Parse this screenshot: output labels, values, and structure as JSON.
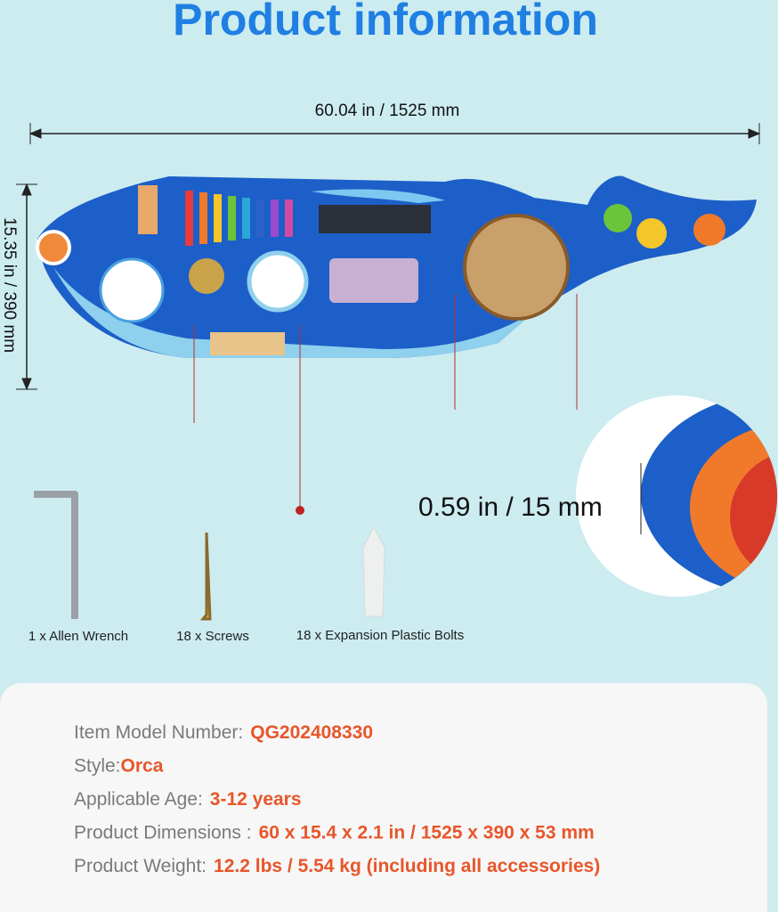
{
  "header": {
    "title": "Product information"
  },
  "dimensions": {
    "width": "60.04 in / 1525 mm",
    "height": "15.35 in / 390 mm",
    "thickness": "0.59 in / 15 mm"
  },
  "accessories": [
    "1 x Allen Wrench",
    "18 x Screws",
    "18 x Expansion Plastic Bolts"
  ],
  "specs": [
    {
      "label": "Item Model Number:",
      "value": "QG202408330"
    },
    {
      "label": "Style:",
      "value": "Orca"
    },
    {
      "label": "Applicable Age:",
      "value": "3-12 years"
    },
    {
      "label": "Product Dimensions :",
      "value": "60 x 15.4 x 2.1 in / 1525 x 390 x 53 mm"
    },
    {
      "label": "Product Weight:",
      "value": "12.2 lbs / 5.54 kg (including all accessories)"
    }
  ]
}
